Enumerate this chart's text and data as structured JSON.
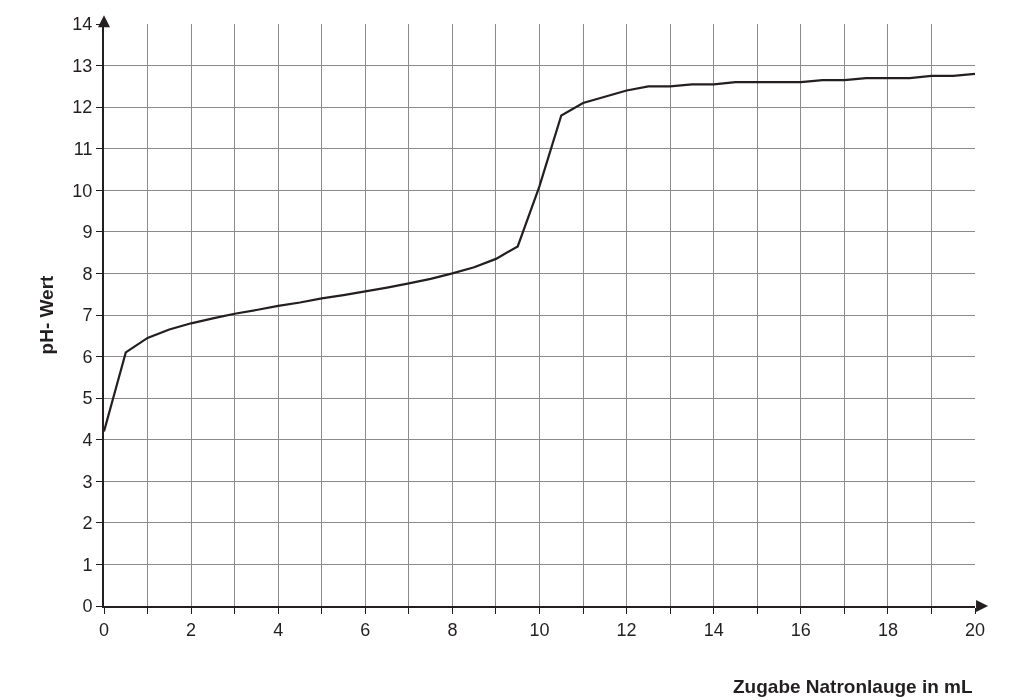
{
  "chart_data": {
    "type": "line",
    "xlabel": "Zugabe Natronlauge in mL",
    "ylabel": "pH- Wert",
    "x": [
      0,
      0.5,
      1,
      1.5,
      2,
      2.5,
      3,
      3.5,
      4,
      4.5,
      5,
      5.5,
      6,
      6.5,
      7,
      7.5,
      8,
      8.5,
      9,
      9.5,
      10,
      10.5,
      11,
      11.5,
      12,
      12.5,
      13,
      13.5,
      14,
      14.5,
      15,
      15.5,
      16,
      16.5,
      17,
      17.5,
      18,
      18.5,
      19,
      19.5,
      20
    ],
    "series": [
      {
        "color": "#231f20",
        "values": [
          4.2,
          6.1,
          6.45,
          6.65,
          6.8,
          6.92,
          7.03,
          7.12,
          7.22,
          7.3,
          7.4,
          7.48,
          7.57,
          7.66,
          7.76,
          7.87,
          8.0,
          8.15,
          8.35,
          8.65,
          10.1,
          11.8,
          12.1,
          12.25,
          12.4,
          12.5,
          12.5,
          12.55,
          12.55,
          12.6,
          12.6,
          12.6,
          12.6,
          12.65,
          12.65,
          12.7,
          12.7,
          12.7,
          12.75,
          12.75,
          12.8
        ]
      }
    ],
    "xlim": [
      0,
      20
    ],
    "xticks": [
      0,
      {
        "value": 1,
        "label": null
      },
      2,
      {
        "value": 3,
        "label": null
      },
      4,
      {
        "value": 5,
        "label": null
      },
      6,
      {
        "value": 7,
        "label": null
      },
      8,
      {
        "value": 9,
        "label": null
      },
      10,
      {
        "value": 11,
        "label": null
      },
      12,
      {
        "value": 13,
        "label": null
      },
      14,
      {
        "value": 15,
        "label": null
      },
      16,
      {
        "value": 17,
        "label": null
      },
      18,
      {
        "value": 19,
        "label": null
      },
      20
    ],
    "ylim": [
      0,
      14
    ],
    "yticks": [
      0,
      1,
      2,
      3,
      4,
      5,
      6,
      7,
      8,
      9,
      10,
      11,
      12,
      13,
      14
    ],
    "grid": true,
    "marker": "none",
    "line_style": "solid"
  }
}
